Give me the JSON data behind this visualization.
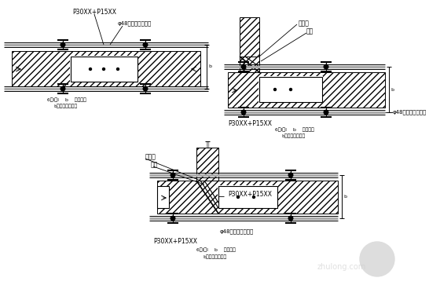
{
  "bg_color": "#ffffff",
  "watermark": "zhulong.com",
  "d1": {
    "label_top": "P30XX+P15XX",
    "label_pipe": "φ48钉管每层模四道",
    "label_sz": "6分l、l    b    分个干块",
    "label_fang": "b内施工方案决定"
  },
  "d2": {
    "label_yinjiao": "阴角模",
    "label_mu": "木模",
    "label_p30left": "P30XX+P15XX",
    "label_pipe": "φ48钉管每层模四道",
    "label_sz": "6分l、l    b    分个干块",
    "label_fang": "b内施工方案决定"
  },
  "d3": {
    "label_yinjiao": "阴角模",
    "label_mu": "木模",
    "label_p30right": "P30XX+P15XX",
    "label_p30bottom": "P30XX+P15XX",
    "label_pipe": "φ48钉管每层模四道",
    "label_sz": "6分l、l    b    分个干块",
    "label_fang": "b内施工方案决定"
  }
}
